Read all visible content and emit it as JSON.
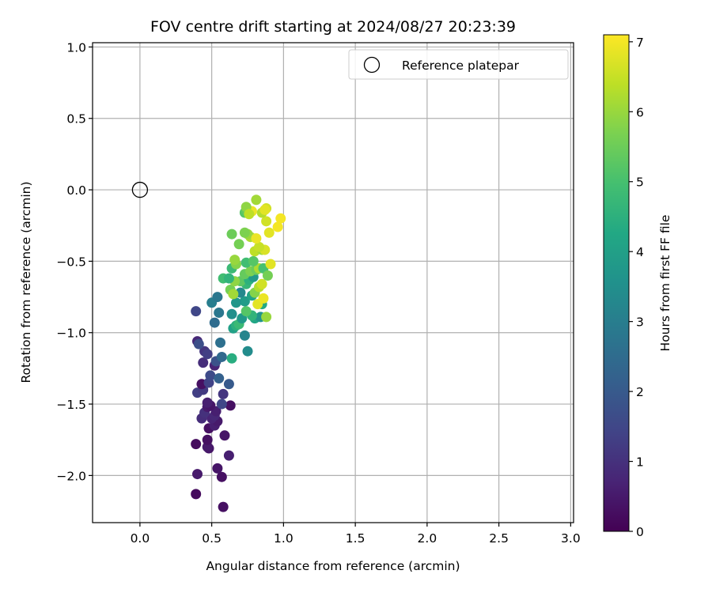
{
  "chart_data": {
    "type": "scatter",
    "title": "FOV centre drift starting at 2024/08/27 20:23:39",
    "xlabel": "Angular distance from reference (arcmin)",
    "ylabel": "Rotation from reference (arcmin)",
    "xlim": [
      -0.33,
      3.02
    ],
    "ylim": [
      -2.33,
      1.03
    ],
    "xticks": [
      0.0,
      0.5,
      1.0,
      1.5,
      2.0,
      2.5,
      3.0
    ],
    "xtick_labels": [
      "0.0",
      "0.5",
      "1.0",
      "1.5",
      "2.0",
      "2.5",
      "3.0"
    ],
    "yticks": [
      1.0,
      0.5,
      0.0,
      -0.5,
      -1.0,
      -1.5,
      -2.0
    ],
    "ytick_labels": [
      "1.0",
      "0.5",
      "0.0",
      "−0.5",
      "−1.0",
      "−1.5",
      "−2.0"
    ],
    "grid": true,
    "legend_position": "top-right",
    "reference": {
      "label": "Reference platepar",
      "x": 0.0,
      "y": 0.0
    },
    "colorbar": {
      "label": "Hours from first FF file",
      "min": 0,
      "max": 7.1,
      "ticks": [
        0,
        1,
        2,
        3,
        4,
        5,
        6,
        7
      ],
      "tick_labels": [
        "0",
        "1",
        "2",
        "3",
        "4",
        "5",
        "6",
        "7"
      ],
      "colormap": "viridis"
    },
    "points": [
      {
        "x": 0.39,
        "y": -2.13,
        "h": 0.2
      },
      {
        "x": 0.58,
        "y": -2.22,
        "h": 0.3
      },
      {
        "x": 0.4,
        "y": -1.99,
        "h": 0.5
      },
      {
        "x": 0.57,
        "y": -2.01,
        "h": 0.3
      },
      {
        "x": 0.54,
        "y": -1.95,
        "h": 0.4
      },
      {
        "x": 0.62,
        "y": -1.86,
        "h": 0.6
      },
      {
        "x": 0.48,
        "y": -1.81,
        "h": 0.4
      },
      {
        "x": 0.47,
        "y": -1.8,
        "h": 0.5
      },
      {
        "x": 0.39,
        "y": -1.78,
        "h": 0.2
      },
      {
        "x": 0.47,
        "y": -1.75,
        "h": 0.3
      },
      {
        "x": 0.59,
        "y": -1.72,
        "h": 0.4
      },
      {
        "x": 0.48,
        "y": -1.67,
        "h": 0.3
      },
      {
        "x": 0.52,
        "y": -1.65,
        "h": 0.6
      },
      {
        "x": 0.54,
        "y": -1.62,
        "h": 0.5
      },
      {
        "x": 0.5,
        "y": -1.6,
        "h": 0.7
      },
      {
        "x": 0.43,
        "y": -1.6,
        "h": 0.9
      },
      {
        "x": 0.52,
        "y": -1.58,
        "h": 0.8
      },
      {
        "x": 0.53,
        "y": -1.55,
        "h": 0.6
      },
      {
        "x": 0.45,
        "y": -1.56,
        "h": 1.0
      },
      {
        "x": 0.47,
        "y": -1.52,
        "h": 0.5
      },
      {
        "x": 0.49,
        "y": -1.51,
        "h": 0.4
      },
      {
        "x": 0.63,
        "y": -1.51,
        "h": 0.3
      },
      {
        "x": 0.57,
        "y": -1.5,
        "h": 1.5
      },
      {
        "x": 0.47,
        "y": -1.49,
        "h": 0.6
      },
      {
        "x": 0.58,
        "y": -1.43,
        "h": 1.1
      },
      {
        "x": 0.4,
        "y": -1.42,
        "h": 1.3
      },
      {
        "x": 0.44,
        "y": -1.4,
        "h": 1.2
      },
      {
        "x": 0.43,
        "y": -1.36,
        "h": 0.3
      },
      {
        "x": 0.48,
        "y": -1.35,
        "h": 1.4
      },
      {
        "x": 0.62,
        "y": -1.36,
        "h": 2.0
      },
      {
        "x": 0.49,
        "y": -1.3,
        "h": 1.6
      },
      {
        "x": 0.55,
        "y": -1.32,
        "h": 2.2
      },
      {
        "x": 0.52,
        "y": -1.23,
        "h": 0.7
      },
      {
        "x": 0.53,
        "y": -1.2,
        "h": 1.8
      },
      {
        "x": 0.44,
        "y": -1.21,
        "h": 0.9
      },
      {
        "x": 0.57,
        "y": -1.17,
        "h": 2.4
      },
      {
        "x": 0.45,
        "y": -1.13,
        "h": 1.1
      },
      {
        "x": 0.47,
        "y": -1.15,
        "h": 1.3
      },
      {
        "x": 0.4,
        "y": -1.06,
        "h": 0.8
      },
      {
        "x": 0.41,
        "y": -1.08,
        "h": 1.7
      },
      {
        "x": 0.56,
        "y": -1.07,
        "h": 2.6
      },
      {
        "x": 0.39,
        "y": -0.85,
        "h": 1.5
      },
      {
        "x": 0.52,
        "y": -0.93,
        "h": 2.5
      },
      {
        "x": 0.55,
        "y": -0.86,
        "h": 2.8
      },
      {
        "x": 0.5,
        "y": -0.79,
        "h": 3.0
      },
      {
        "x": 0.54,
        "y": -0.75,
        "h": 2.8
      },
      {
        "x": 0.64,
        "y": -1.18,
        "h": 4.4
      },
      {
        "x": 0.75,
        "y": -1.13,
        "h": 3.4
      },
      {
        "x": 0.73,
        "y": -1.02,
        "h": 3.2
      },
      {
        "x": 0.65,
        "y": -0.97,
        "h": 4.0
      },
      {
        "x": 0.67,
        "y": -0.95,
        "h": 4.5
      },
      {
        "x": 0.64,
        "y": -0.87,
        "h": 3.5
      },
      {
        "x": 0.69,
        "y": -0.94,
        "h": 4.8
      },
      {
        "x": 0.71,
        "y": -0.9,
        "h": 3.8
      },
      {
        "x": 0.8,
        "y": -0.9,
        "h": 4.2
      },
      {
        "x": 0.84,
        "y": -0.89,
        "h": 3.6
      },
      {
        "x": 0.78,
        "y": -0.88,
        "h": 4.6
      },
      {
        "x": 0.88,
        "y": -0.89,
        "h": 6.0
      },
      {
        "x": 0.74,
        "y": -0.85,
        "h": 5.2
      },
      {
        "x": 0.85,
        "y": -0.8,
        "h": 4.3
      },
      {
        "x": 0.82,
        "y": -0.8,
        "h": 6.8
      },
      {
        "x": 0.73,
        "y": -0.78,
        "h": 3.9
      },
      {
        "x": 0.67,
        "y": -0.79,
        "h": 3.7
      },
      {
        "x": 0.86,
        "y": -0.76,
        "h": 6.9
      },
      {
        "x": 0.78,
        "y": -0.74,
        "h": 4.1
      },
      {
        "x": 0.7,
        "y": -0.72,
        "h": 3.3
      },
      {
        "x": 0.63,
        "y": -0.7,
        "h": 5.6
      },
      {
        "x": 0.65,
        "y": -0.73,
        "h": 6.1
      },
      {
        "x": 0.8,
        "y": -0.72,
        "h": 5.8
      },
      {
        "x": 0.83,
        "y": -0.68,
        "h": 6.3
      },
      {
        "x": 0.85,
        "y": -0.66,
        "h": 6.6
      },
      {
        "x": 0.74,
        "y": -0.66,
        "h": 4.7
      },
      {
        "x": 0.7,
        "y": -0.64,
        "h": 5.3
      },
      {
        "x": 0.66,
        "y": -0.64,
        "h": 5.9
      },
      {
        "x": 0.58,
        "y": -0.62,
        "h": 4.9
      },
      {
        "x": 0.62,
        "y": -0.62,
        "h": 4.6
      },
      {
        "x": 0.76,
        "y": -0.63,
        "h": 4.5
      },
      {
        "x": 0.79,
        "y": -0.61,
        "h": 3.8
      },
      {
        "x": 0.73,
        "y": -0.59,
        "h": 5.4
      },
      {
        "x": 0.77,
        "y": -0.57,
        "h": 5.7
      },
      {
        "x": 0.81,
        "y": -0.56,
        "h": 5.5
      },
      {
        "x": 0.83,
        "y": -0.55,
        "h": 6.2
      },
      {
        "x": 0.86,
        "y": -0.55,
        "h": 5.0
      },
      {
        "x": 0.89,
        "y": -0.6,
        "h": 5.6
      },
      {
        "x": 0.64,
        "y": -0.55,
        "h": 4.8
      },
      {
        "x": 0.67,
        "y": -0.52,
        "h": 5.8
      },
      {
        "x": 0.66,
        "y": -0.49,
        "h": 6.0
      },
      {
        "x": 0.74,
        "y": -0.51,
        "h": 4.9
      },
      {
        "x": 0.79,
        "y": -0.5,
        "h": 5.2
      },
      {
        "x": 0.91,
        "y": -0.52,
        "h": 6.8
      },
      {
        "x": 0.8,
        "y": -0.43,
        "h": 6.4
      },
      {
        "x": 0.85,
        "y": -0.42,
        "h": 6.1
      },
      {
        "x": 0.87,
        "y": -0.42,
        "h": 6.7
      },
      {
        "x": 0.83,
        "y": -0.4,
        "h": 6.5
      },
      {
        "x": 0.69,
        "y": -0.38,
        "h": 5.6
      },
      {
        "x": 0.77,
        "y": -0.33,
        "h": 6.2
      },
      {
        "x": 0.75,
        "y": -0.31,
        "h": 6.0
      },
      {
        "x": 0.73,
        "y": -0.3,
        "h": 5.7
      },
      {
        "x": 0.64,
        "y": -0.31,
        "h": 5.5
      },
      {
        "x": 0.81,
        "y": -0.34,
        "h": 6.9
      },
      {
        "x": 0.9,
        "y": -0.3,
        "h": 6.8
      },
      {
        "x": 0.96,
        "y": -0.26,
        "h": 7.0
      },
      {
        "x": 0.88,
        "y": -0.22,
        "h": 6.6
      },
      {
        "x": 0.98,
        "y": -0.2,
        "h": 7.0
      },
      {
        "x": 0.73,
        "y": -0.16,
        "h": 5.2
      },
      {
        "x": 0.74,
        "y": -0.14,
        "h": 5.4
      },
      {
        "x": 0.78,
        "y": -0.15,
        "h": 6.9
      },
      {
        "x": 0.85,
        "y": -0.16,
        "h": 6.3
      },
      {
        "x": 0.88,
        "y": -0.13,
        "h": 6.6
      },
      {
        "x": 0.87,
        "y": -0.14,
        "h": 6.8
      },
      {
        "x": 0.74,
        "y": -0.12,
        "h": 5.9
      },
      {
        "x": 0.81,
        "y": -0.07,
        "h": 6.1
      },
      {
        "x": 0.76,
        "y": -0.17,
        "h": 6.4
      }
    ]
  }
}
